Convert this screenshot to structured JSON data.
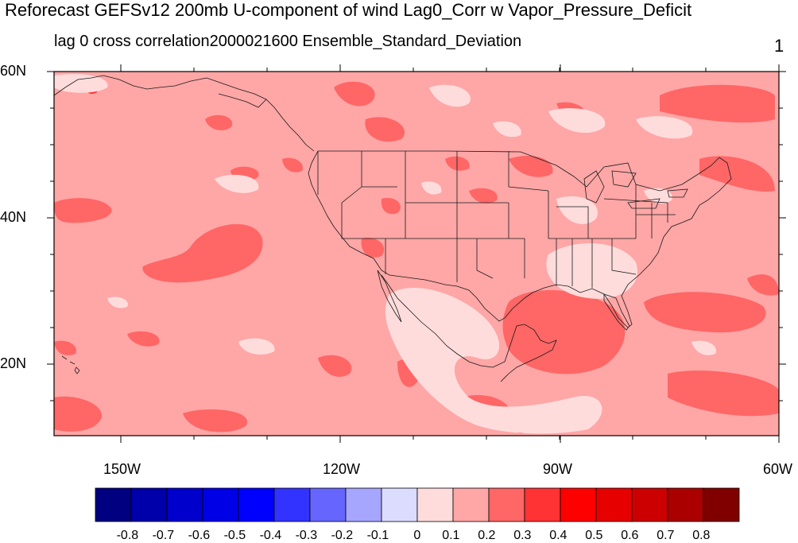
{
  "title": "Reforecast GEFSv12 200mb U-component of wind Lag0_Corr w Vapor_Pressure_Deficit",
  "subtitle": "lag 0 cross correlation2000021600 Ensemble_Standard_Deviation",
  "page_number": "1",
  "map": {
    "lat_labels": [
      "60N",
      "40N",
      "20N"
    ],
    "lon_labels": [
      "150W",
      "120W",
      "90W",
      "60W"
    ],
    "extent": {
      "lon_min": -159,
      "lon_max": -60,
      "lat_min": 10,
      "lat_max": 60
    },
    "background_color": "#ffa6a6",
    "regions": [
      "continental United States",
      "Mexico",
      "Gulf of Mexico",
      "Caribbean",
      "Hawaii",
      "Alaska panhandle",
      "southern Canada"
    ]
  },
  "colorbar": {
    "labels": [
      "-0.8",
      "-0.7",
      "-0.6",
      "-0.5",
      "-0.4",
      "-0.3",
      "-0.2",
      "-0.1",
      "0",
      "0.1",
      "0.2",
      "0.3",
      "0.4",
      "0.5",
      "0.6",
      "0.7",
      "0.8"
    ],
    "colors": [
      "#000080",
      "#0000aa",
      "#0000cc",
      "#0000e6",
      "#0000ff",
      "#3333ff",
      "#6666ff",
      "#a6a6ff",
      "#dcdcff",
      "#ffdcdc",
      "#ffa6a6",
      "#ff6666",
      "#ff3333",
      "#ff0000",
      "#e60000",
      "#cc0000",
      "#aa0000",
      "#800000"
    ]
  }
}
